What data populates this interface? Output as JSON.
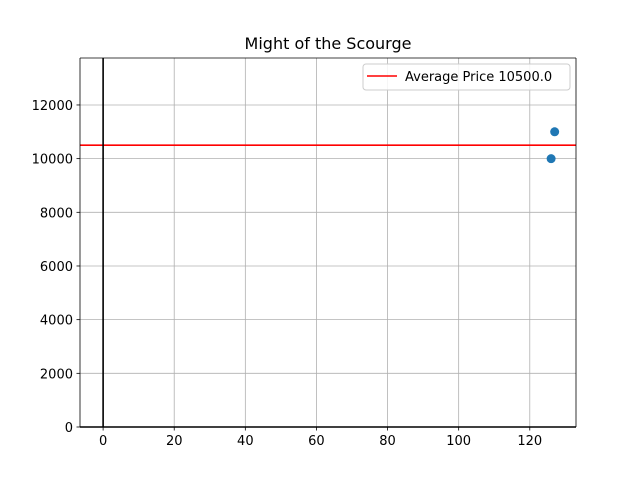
{
  "chart_data": {
    "type": "scatter",
    "title": "Might of the Scourge",
    "xlabel": "",
    "ylabel": "",
    "xlim": [
      -6.5,
      133
    ],
    "ylim": [
      0,
      13750
    ],
    "x_ticks": [
      0,
      20,
      40,
      60,
      80,
      100,
      120
    ],
    "y_ticks": [
      0,
      2000,
      4000,
      6000,
      8000,
      10000,
      12000
    ],
    "grid": true,
    "legend_position": "top-right",
    "points": [
      {
        "x": 126,
        "y": 10000
      },
      {
        "x": 127,
        "y": 11000
      }
    ],
    "reference_lines": [
      {
        "orientation": "horizontal",
        "value": 10500,
        "label": "Average Price 10500.0",
        "color": "#ff0000"
      },
      {
        "orientation": "vertical",
        "value": 0,
        "color": "#000000"
      }
    ],
    "point_color": "#1f77b4"
  }
}
